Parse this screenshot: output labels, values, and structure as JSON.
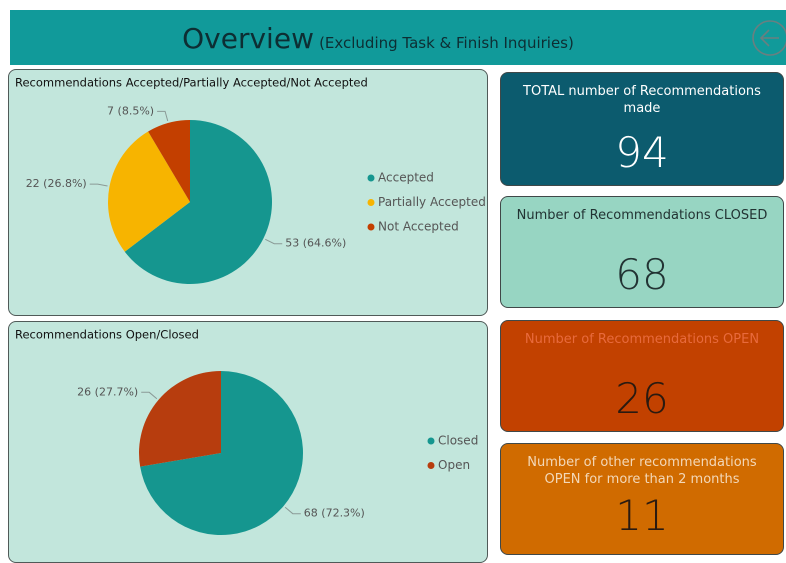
{
  "header": {
    "title": "Overview",
    "subtitle": "(Excluding Task & Finish Inquiries)"
  },
  "chart_data": [
    {
      "type": "pie",
      "title": "Recommendations Accepted/Partially Accepted/Not Accepted",
      "categories": [
        "Accepted",
        "Partially Accepted",
        "Not Accepted"
      ],
      "values": [
        53,
        22,
        7
      ],
      "value_labels": [
        "53 (64.6%)",
        "22 (26.8%)",
        "7 (8.5%)"
      ],
      "colors": [
        "#15968f",
        "#f7b400",
        "#c33f00"
      ]
    },
    {
      "type": "pie",
      "title": "Recommendations Open/Closed",
      "categories": [
        "Closed",
        "Open"
      ],
      "values": [
        68,
        26
      ],
      "value_labels": [
        "68 (72.3%)",
        "26 (27.7%)"
      ],
      "colors": [
        "#15968f",
        "#b73d0e"
      ]
    }
  ],
  "cards": [
    {
      "title": "TOTAL number of Recommendations made",
      "value": 94
    },
    {
      "title": "Number of Recommendations CLOSED",
      "value": 68
    },
    {
      "title": "Number of Recommendations OPEN",
      "value": 26
    },
    {
      "title": "Number of other recommendations OPEN for more than 2 months",
      "value": 11
    }
  ]
}
